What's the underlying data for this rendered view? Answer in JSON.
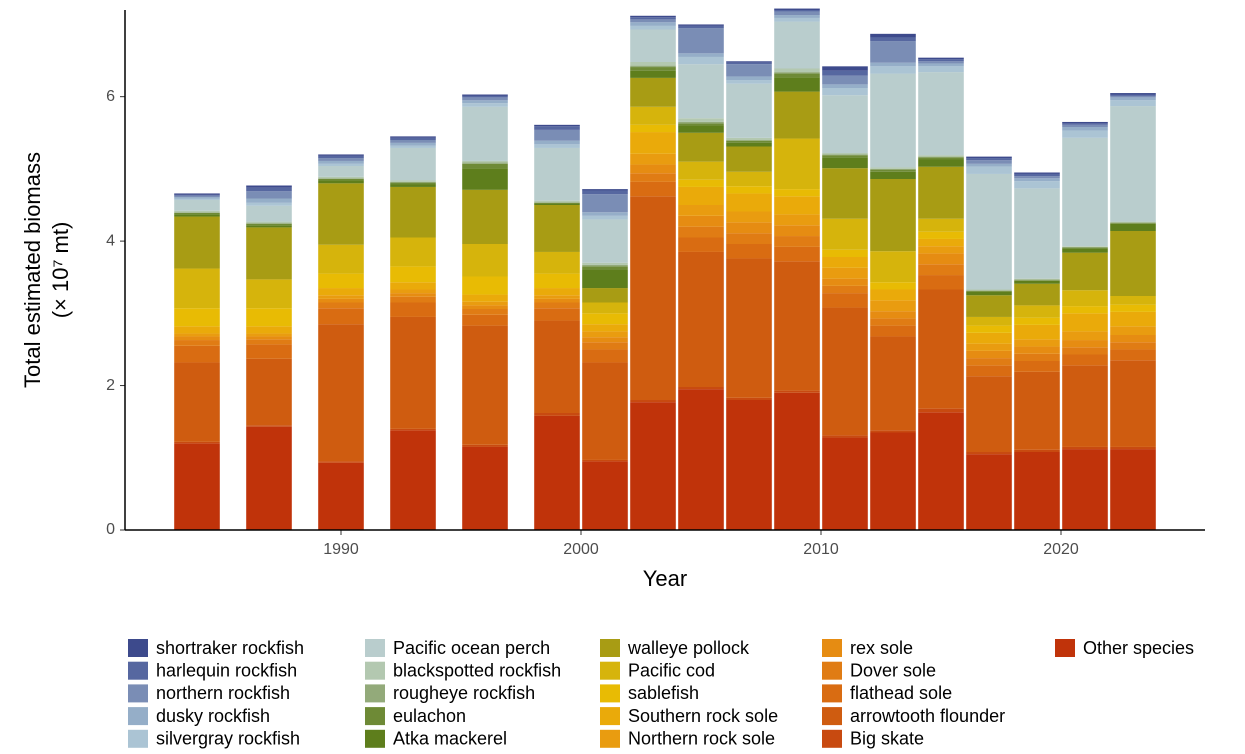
{
  "chart_data": {
    "type": "stacked_bar",
    "x_label": "Year",
    "y_label": [
      "Total estimated biomass",
      "(× 10⁷ mt)"
    ],
    "x": [
      1984,
      1987,
      1990,
      1993,
      1996,
      1999,
      2001,
      2003,
      2005,
      2007,
      2009,
      2011,
      2013,
      2015,
      2017,
      2019,
      2021,
      2023
    ],
    "xlim": [
      1981,
      2026
    ],
    "xticks": [
      1990,
      2000,
      2010,
      2020
    ],
    "ylim": [
      0,
      7.2
    ],
    "yticks": [
      0,
      2,
      4,
      6
    ],
    "grid": false,
    "series": [
      {
        "name": "shortraker rockfish",
        "color": "#3d4a8c",
        "values": [
          0.02,
          0.03,
          0.02,
          0.02,
          0.02,
          0.02,
          0.02,
          0.02,
          0.02,
          0.02,
          0.02,
          0.06,
          0.05,
          0.02,
          0.02,
          0.02,
          0.02,
          0.02
        ]
      },
      {
        "name": "harlequin rockfish",
        "color": "#5667a0",
        "values": [
          0.01,
          0.05,
          0.03,
          0.03,
          0.02,
          0.05,
          0.05,
          0.03,
          0.03,
          0.02,
          0.02,
          0.07,
          0.05,
          0.03,
          0.03,
          0.03,
          0.02,
          0.02
        ]
      },
      {
        "name": "northern rockfish",
        "color": "#7a8db5",
        "values": [
          0.02,
          0.1,
          0.04,
          0.04,
          0.04,
          0.15,
          0.25,
          0.04,
          0.35,
          0.17,
          0.05,
          0.12,
          0.3,
          0.03,
          0.05,
          0.03,
          0.03,
          0.02
        ]
      },
      {
        "name": "dusky rockfish",
        "color": "#95aec8",
        "values": [
          0.02,
          0.06,
          0.04,
          0.04,
          0.04,
          0.05,
          0.05,
          0.05,
          0.05,
          0.05,
          0.04,
          0.05,
          0.05,
          0.04,
          0.04,
          0.04,
          0.05,
          0.04
        ]
      },
      {
        "name": "silvergray rockfish",
        "color": "#abc4d4",
        "values": [
          0.02,
          0.04,
          0.03,
          0.03,
          0.05,
          0.05,
          0.05,
          0.05,
          0.1,
          0.05,
          0.05,
          0.1,
          0.1,
          0.08,
          0.1,
          0.1,
          0.1,
          0.08
        ]
      },
      {
        "name": "Pacific ocean perch",
        "color": "#b9cdcd",
        "values": [
          0.15,
          0.22,
          0.15,
          0.45,
          0.75,
          0.73,
          0.6,
          0.45,
          0.75,
          0.75,
          0.65,
          0.8,
          1.3,
          1.15,
          1.6,
          1.25,
          1.5,
          1.6
        ]
      },
      {
        "name": "blackspotted rockfish",
        "color": "#b3c8b0",
        "values": [
          0.02,
          0.02,
          0.02,
          0.02,
          0.02,
          0.02,
          0.03,
          0.05,
          0.05,
          0.03,
          0.05,
          0.02,
          0.02,
          0.02,
          0.01,
          0.01,
          0.01,
          0.01
        ]
      },
      {
        "name": "rougheye rockfish",
        "color": "#93aa7a",
        "values": [
          0.01,
          0.01,
          0.01,
          0.01,
          0.02,
          0.01,
          0.02,
          0.02,
          0.02,
          0.01,
          0.02,
          0.01,
          0.01,
          0.01,
          0.01,
          0.01,
          0.01,
          0.01
        ]
      },
      {
        "name": "eulachon",
        "color": "#6e8a36",
        "values": [
          0.02,
          0.02,
          0.02,
          0.02,
          0.06,
          0.01,
          0.05,
          0.05,
          0.03,
          0.03,
          0.05,
          0.03,
          0.03,
          0.03,
          0.01,
          0.01,
          0.01,
          0.01
        ]
      },
      {
        "name": "Atka mackerel",
        "color": "#5e7e1c",
        "values": [
          0.03,
          0.03,
          0.04,
          0.04,
          0.3,
          0.02,
          0.25,
          0.1,
          0.1,
          0.05,
          0.2,
          0.15,
          0.1,
          0.1,
          0.05,
          0.04,
          0.06,
          0.1
        ]
      },
      {
        "name": "walleye pollock",
        "color": "#a89c14",
        "values": [
          0.72,
          0.72,
          0.85,
          0.7,
          0.75,
          0.65,
          0.2,
          0.4,
          0.4,
          0.35,
          0.65,
          0.7,
          1.0,
          0.72,
          0.3,
          0.3,
          0.52,
          0.9
        ]
      },
      {
        "name": "Pacific cod",
        "color": "#d6b40c",
        "values": [
          0.55,
          0.4,
          0.4,
          0.4,
          0.45,
          0.3,
          0.15,
          0.25,
          0.25,
          0.2,
          0.7,
          0.43,
          0.43,
          0.18,
          0.12,
          0.17,
          0.22,
          0.12
        ]
      },
      {
        "name": "sablefish",
        "color": "#e8bb04",
        "values": [
          0.25,
          0.25,
          0.2,
          0.22,
          0.25,
          0.2,
          0.15,
          0.1,
          0.1,
          0.1,
          0.1,
          0.1,
          0.1,
          0.1,
          0.1,
          0.1,
          0.1,
          0.1
        ]
      },
      {
        "name": "Southern rock sole",
        "color": "#eaaa0a",
        "values": [
          0.1,
          0.1,
          0.1,
          0.1,
          0.1,
          0.1,
          0.1,
          0.3,
          0.25,
          0.25,
          0.25,
          0.15,
          0.15,
          0.1,
          0.15,
          0.2,
          0.25,
          0.2
        ]
      },
      {
        "name": "Northern rock sole",
        "color": "#e99c10",
        "values": [
          0.04,
          0.04,
          0.05,
          0.05,
          0.05,
          0.05,
          0.08,
          0.15,
          0.15,
          0.15,
          0.15,
          0.15,
          0.15,
          0.1,
          0.1,
          0.1,
          0.12,
          0.12
        ]
      },
      {
        "name": "rex sole",
        "color": "#e68c12",
        "values": [
          0.05,
          0.04,
          0.05,
          0.05,
          0.05,
          0.05,
          0.07,
          0.12,
          0.15,
          0.15,
          0.15,
          0.1,
          0.1,
          0.15,
          0.1,
          0.1,
          0.1,
          0.1
        ]
      },
      {
        "name": "Dover sole",
        "color": "#e07c14",
        "values": [
          0.08,
          0.07,
          0.08,
          0.08,
          0.08,
          0.08,
          0.1,
          0.12,
          0.15,
          0.15,
          0.15,
          0.1,
          0.1,
          0.15,
          0.1,
          0.1,
          0.1,
          0.1
        ]
      },
      {
        "name": "flathead sole",
        "color": "#d96c12",
        "values": [
          0.23,
          0.2,
          0.22,
          0.2,
          0.15,
          0.17,
          0.18,
          0.2,
          0.2,
          0.2,
          0.2,
          0.2,
          0.15,
          0.2,
          0.15,
          0.15,
          0.15,
          0.15
        ]
      },
      {
        "name": "arrowtooth flounder",
        "color": "#cf5c10",
        "values": [
          1.1,
          0.92,
          1.9,
          1.55,
          1.65,
          1.28,
          1.35,
          2.82,
          1.87,
          1.93,
          1.79,
          1.77,
          1.3,
          1.65,
          1.05,
          1.08,
          1.13,
          1.2
        ]
      },
      {
        "name": "Big skate",
        "color": "#c84a10",
        "values": [
          0.02,
          0.02,
          0.02,
          0.02,
          0.03,
          0.04,
          0.02,
          0.03,
          0.03,
          0.03,
          0.03,
          0.03,
          0.03,
          0.05,
          0.03,
          0.03,
          0.03,
          0.03
        ]
      },
      {
        "name": "Other species",
        "color": "#c0330a",
        "values": [
          1.2,
          1.43,
          0.93,
          1.38,
          1.15,
          1.58,
          0.95,
          1.77,
          1.95,
          1.8,
          1.9,
          1.28,
          1.35,
          1.63,
          1.05,
          1.08,
          1.12,
          1.12
        ]
      }
    ]
  }
}
